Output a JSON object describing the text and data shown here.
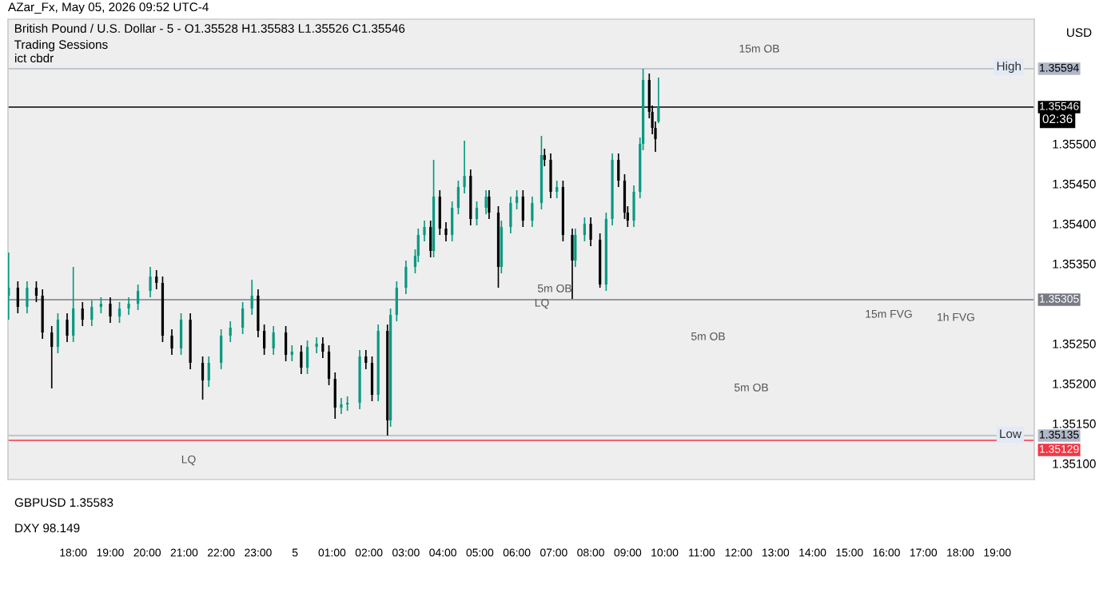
{
  "chart_data": {
    "type": "candlestick",
    "title": "British Pound / U.S. Dollar - 5 - O1.35528 H1.35583 L1.35526 C1.35546",
    "subtitle": "Trading Sessions",
    "colors": [
      "#089981",
      "#000000",
      "#089981",
      "#000000",
      "#000000",
      "#000000",
      "#089981",
      "#000000",
      "#089981",
      "#000000",
      "#089981",
      "#089981",
      "#000000",
      "#089981",
      "#089981",
      "#089981",
      "#089981",
      "#000000",
      "#000000",
      "#000000",
      "#089981",
      "#000000",
      "#000000",
      "#089981",
      "#089981",
      "#089981",
      "#089981",
      "#089981",
      "#000000",
      "#000000",
      "#089981",
      "#000000",
      "#089981",
      "#000000",
      "#089981",
      "#089981",
      "#000000",
      "#000000",
      "#000000",
      "#089981",
      "#089981",
      "#089981",
      "#000000",
      "#000000",
      "#089981",
      "#000000",
      "#089981",
      "#089981",
      "#089981",
      "#089981",
      "#089981",
      "#089981",
      "#000000",
      "#089981",
      "#000000",
      "#000000",
      "#089981",
      "#089981",
      "#089981",
      "#000000",
      "#089981",
      "#089981",
      "#000000",
      "#000000",
      "#089981",
      "#089981",
      "#089981",
      "#000000",
      "#089981",
      "#089981",
      "#000000",
      "#000000",
      "#089981",
      "#000000",
      "#000000",
      "#089981",
      "#089981",
      "#000000",
      "#000000",
      "#089981",
      "#089981",
      "#000000",
      "#000000",
      "#000000",
      "#089981",
      "#089981",
      "#089981",
      "#000000",
      "#000000",
      "#000000",
      "#089981"
    ],
    "x": [
      "2026-05-04T16:15",
      "2026-05-04T16:30",
      "2026-05-04T16:45",
      "2026-05-04T17:00",
      "2026-05-04T17:10",
      "2026-05-04T17:25",
      "2026-05-04T17:35",
      "2026-05-04T17:50",
      "2026-05-04T18:00",
      "2026-05-04T18:15",
      "2026-05-04T18:30",
      "2026-05-04T18:45",
      "2026-05-04T19:00",
      "2026-05-04T19:15",
      "2026-05-04T19:30",
      "2026-05-04T19:45",
      "2026-05-04T20:05",
      "2026-05-04T20:15",
      "2026-05-04T20:25",
      "2026-05-04T20:40",
      "2026-05-04T20:55",
      "2026-05-04T21:10",
      "2026-05-04T21:30",
      "2026-05-04T21:40",
      "2026-05-04T22:00",
      "2026-05-04T22:15",
      "2026-05-04T22:35",
      "2026-05-04T22:50",
      "2026-05-04T23:00",
      "2026-05-04T23:10",
      "2026-05-04T23:25",
      "2026-05-04T23:45",
      "2026-05-04T23:55",
      "2026-05-05T00:10",
      "2026-05-05T00:20",
      "2026-05-05T00:35",
      "2026-05-05T00:45",
      "2026-05-05T00:55",
      "2026-05-05T01:05",
      "2026-05-05T01:15",
      "2026-05-05T01:25",
      "2026-05-05T01:45",
      "2026-05-05T01:55",
      "2026-05-05T02:05",
      "2026-05-05T02:15",
      "2026-05-05T02:30",
      "2026-05-05T02:35",
      "2026-05-05T02:45",
      "2026-05-05T03:00",
      "2026-05-05T03:15",
      "2026-05-05T03:20",
      "2026-05-05T03:30",
      "2026-05-05T03:40",
      "2026-05-05T03:45",
      "2026-05-05T03:55",
      "2026-05-05T04:05",
      "2026-05-05T04:15",
      "2026-05-05T04:25",
      "2026-05-05T04:35",
      "2026-05-05T04:45",
      "2026-05-05T04:55",
      "2026-05-05T05:10",
      "2026-05-05T05:15",
      "2026-05-05T05:30",
      "2026-05-05T05:35",
      "2026-05-05T05:50",
      "2026-05-05T06:00",
      "2026-05-05T06:10",
      "2026-05-05T06:25",
      "2026-05-05T06:40",
      "2026-05-05T06:45",
      "2026-05-05T06:55",
      "2026-05-05T07:05",
      "2026-05-05T07:15",
      "2026-05-05T07:30",
      "2026-05-05T07:35",
      "2026-05-05T07:50",
      "2026-05-05T08:00",
      "2026-05-05T08:15",
      "2026-05-05T08:25",
      "2026-05-05T08:35",
      "2026-05-05T08:45",
      "2026-05-05T08:55",
      "2026-05-05T09:00",
      "2026-05-05T09:10",
      "2026-05-05T09:20",
      "2026-05-05T09:25",
      "2026-05-05T09:35",
      "2026-05-05T09:40",
      "2026-05-05T09:45",
      "2026-05-05T09:50"
    ],
    "ohlc": [
      [
        1.3531,
        1.35364,
        1.3528,
        1.3532
      ],
      [
        1.3532,
        1.35328,
        1.35288,
        1.35296
      ],
      [
        1.35296,
        1.35328,
        1.35288,
        1.3532
      ],
      [
        1.3532,
        1.35328,
        1.35302,
        1.3531
      ],
      [
        1.3531,
        1.35318,
        1.35256,
        1.35264
      ],
      [
        1.35264,
        1.35272,
        1.35194,
        1.35246
      ],
      [
        1.35246,
        1.35288,
        1.35238,
        1.3528
      ],
      [
        1.3528,
        1.35288,
        1.35252,
        1.3526
      ],
      [
        1.3526,
        1.35346,
        1.35252,
        1.35294
      ],
      [
        1.35294,
        1.35302,
        1.35272,
        1.3528
      ],
      [
        1.3528,
        1.35304,
        1.35272,
        1.35296
      ],
      [
        1.35296,
        1.35308,
        1.35288,
        1.353
      ],
      [
        1.353,
        1.35308,
        1.35276,
        1.35284
      ],
      [
        1.35284,
        1.35302,
        1.35276,
        1.35294
      ],
      [
        1.35294,
        1.35308,
        1.35286,
        1.353
      ],
      [
        1.353,
        1.35324,
        1.35292,
        1.35316
      ],
      [
        1.35316,
        1.35346,
        1.35308,
        1.35334
      ],
      [
        1.35334,
        1.35342,
        1.35318,
        1.35326
      ],
      [
        1.35326,
        1.35334,
        1.35252,
        1.3526
      ],
      [
        1.3526,
        1.35268,
        1.35236,
        1.35244
      ],
      [
        1.35244,
        1.35288,
        1.35236,
        1.3528
      ],
      [
        1.3528,
        1.35288,
        1.35218,
        1.35226
      ],
      [
        1.35226,
        1.35234,
        1.3518,
        1.35204
      ],
      [
        1.35204,
        1.35234,
        1.35196,
        1.35226
      ],
      [
        1.35226,
        1.35268,
        1.35218,
        1.3526
      ],
      [
        1.3526,
        1.35278,
        1.35252,
        1.3527
      ],
      [
        1.3527,
        1.35302,
        1.35262,
        1.35294
      ],
      [
        1.35294,
        1.3533,
        1.35286,
        1.3531
      ],
      [
        1.3531,
        1.35318,
        1.35258,
        1.35266
      ],
      [
        1.35266,
        1.35274,
        1.35236,
        1.35244
      ],
      [
        1.35244,
        1.35272,
        1.35236,
        1.35264
      ],
      [
        1.35264,
        1.35272,
        1.35228,
        1.35236
      ],
      [
        1.35236,
        1.35248,
        1.35228,
        1.3524
      ],
      [
        1.3524,
        1.35248,
        1.35212,
        1.3522
      ],
      [
        1.3522,
        1.35254,
        1.35212,
        1.35246
      ],
      [
        1.35246,
        1.35258,
        1.35238,
        1.3525
      ],
      [
        1.3525,
        1.35258,
        1.35232,
        1.3524
      ],
      [
        1.3524,
        1.35248,
        1.35198,
        1.35206
      ],
      [
        1.35206,
        1.35214,
        1.35156,
        1.3517
      ],
      [
        1.3517,
        1.35182,
        1.35162,
        1.35174
      ],
      [
        1.35174,
        1.35184,
        1.35166,
        1.35176
      ],
      [
        1.35176,
        1.35242,
        1.35168,
        1.35234
      ],
      [
        1.35234,
        1.35242,
        1.35218,
        1.35226
      ],
      [
        1.35226,
        1.35234,
        1.35178,
        1.35186
      ],
      [
        1.35186,
        1.35274,
        1.35178,
        1.35266
      ],
      [
        1.35266,
        1.35274,
        1.35135,
        1.35154
      ],
      [
        1.35154,
        1.35294,
        1.35146,
        1.35286
      ],
      [
        1.35286,
        1.35328,
        1.35278,
        1.3532
      ],
      [
        1.3532,
        1.35354,
        1.35312,
        1.35346
      ],
      [
        1.35346,
        1.35368,
        1.35338,
        1.3536
      ],
      [
        1.3536,
        1.35394,
        1.35352,
        1.35386
      ],
      [
        1.35386,
        1.35404,
        1.35378,
        1.35396
      ],
      [
        1.35396,
        1.35404,
        1.35358,
        1.35366
      ],
      [
        1.35366,
        1.3548,
        1.35358,
        1.35434
      ],
      [
        1.35434,
        1.35442,
        1.35386,
        1.35394
      ],
      [
        1.35394,
        1.35402,
        1.35378,
        1.35386
      ],
      [
        1.35386,
        1.35428,
        1.35378,
        1.3542
      ],
      [
        1.3542,
        1.35454,
        1.35412,
        1.35446
      ],
      [
        1.35446,
        1.35504,
        1.35438,
        1.3546
      ],
      [
        1.3546,
        1.35468,
        1.35398,
        1.35406
      ],
      [
        1.35406,
        1.35428,
        1.35398,
        1.3542
      ],
      [
        1.3542,
        1.35442,
        1.35412,
        1.35434
      ],
      [
        1.35434,
        1.35442,
        1.35406,
        1.35414
      ],
      [
        1.35414,
        1.35422,
        1.3532,
        1.35346
      ],
      [
        1.35346,
        1.35404,
        1.35338,
        1.35396
      ],
      [
        1.35396,
        1.35434,
        1.35388,
        1.35426
      ],
      [
        1.35426,
        1.35442,
        1.35418,
        1.35434
      ],
      [
        1.35434,
        1.35442,
        1.35396,
        1.35404
      ],
      [
        1.35404,
        1.35434,
        1.35396,
        1.35426
      ],
      [
        1.35426,
        1.3551,
        1.35418,
        1.35486
      ],
      [
        1.35486,
        1.35494,
        1.35472,
        1.3548
      ],
      [
        1.3548,
        1.35488,
        1.35432,
        1.3544
      ],
      [
        1.3544,
        1.35454,
        1.35432,
        1.35446
      ],
      [
        1.35446,
        1.35454,
        1.35378,
        1.35386
      ],
      [
        1.35386,
        1.35394,
        1.35306,
        1.35354
      ],
      [
        1.35354,
        1.35394,
        1.35346,
        1.35386
      ],
      [
        1.35386,
        1.35408,
        1.35378,
        1.354
      ],
      [
        1.354,
        1.35408,
        1.35372,
        1.3538
      ],
      [
        1.3538,
        1.35388,
        1.3532,
        1.35324
      ],
      [
        1.35324,
        1.35414,
        1.35316,
        1.35406
      ],
      [
        1.35406,
        1.35488,
        1.35398,
        1.3548
      ],
      [
        1.3548,
        1.35488,
        1.35446,
        1.35454
      ],
      [
        1.35454,
        1.35462,
        1.35406,
        1.35414
      ],
      [
        1.35414,
        1.35422,
        1.35396,
        1.35404
      ],
      [
        1.35404,
        1.35448,
        1.35396,
        1.3544
      ],
      [
        1.3544,
        1.35508,
        1.35432,
        1.355
      ],
      [
        1.355,
        1.35594,
        1.35492,
        1.3558
      ],
      [
        1.3558,
        1.35588,
        1.35532,
        1.3554
      ],
      [
        1.3554,
        1.35548,
        1.35512,
        1.3552
      ],
      [
        1.3552,
        1.35528,
        1.3549,
        1.35506
      ],
      [
        1.35528,
        1.35583,
        1.35526,
        1.35546
      ]
    ],
    "xlim": [
      "2026-05-04T16:14",
      "2026-05-05T20:00"
    ],
    "xticks": [
      {
        "value": "2026-05-04T18:00",
        "label": "18:00"
      },
      {
        "value": "2026-05-04T19:00",
        "label": "19:00"
      },
      {
        "value": "2026-05-04T20:00",
        "label": "20:00"
      },
      {
        "value": "2026-05-04T21:00",
        "label": "21:00"
      },
      {
        "value": "2026-05-04T22:00",
        "label": "22:00"
      },
      {
        "value": "2026-05-04T23:00",
        "label": "23:00"
      },
      {
        "value": "2026-05-05T00:00",
        "label": "5"
      },
      {
        "value": "2026-05-05T01:00",
        "label": "01:00"
      },
      {
        "value": "2026-05-05T02:00",
        "label": "02:00"
      },
      {
        "value": "2026-05-05T03:00",
        "label": "03:00"
      },
      {
        "value": "2026-05-05T04:00",
        "label": "04:00"
      },
      {
        "value": "2026-05-05T05:00",
        "label": "05:00"
      },
      {
        "value": "2026-05-05T06:00",
        "label": "06:00"
      },
      {
        "value": "2026-05-05T07:00",
        "label": "07:00"
      },
      {
        "value": "2026-05-05T08:00",
        "label": "08:00"
      },
      {
        "value": "2026-05-05T09:00",
        "label": "09:00"
      },
      {
        "value": "2026-05-05T10:00",
        "label": "10:00"
      },
      {
        "value": "2026-05-05T11:00",
        "label": "11:00"
      },
      {
        "value": "2026-05-05T12:00",
        "label": "12:00"
      },
      {
        "value": "2026-05-05T13:00",
        "label": "13:00"
      },
      {
        "value": "2026-05-05T14:00",
        "label": "14:00"
      },
      {
        "value": "2026-05-05T15:00",
        "label": "15:00"
      },
      {
        "value": "2026-05-05T16:00",
        "label": "16:00"
      },
      {
        "value": "2026-05-05T17:00",
        "label": "17:00"
      },
      {
        "value": "2026-05-05T18:00",
        "label": "18:00"
      },
      {
        "value": "2026-05-05T19:00",
        "label": "19:00"
      }
    ],
    "ylim": [
      1.3508,
      1.35656
    ],
    "yticks": [
      {
        "value": 1.351,
        "label": "1.35100"
      },
      {
        "value": 1.3515,
        "label": "1.35150"
      },
      {
        "value": 1.352,
        "label": "1.35200"
      },
      {
        "value": 1.3525,
        "label": "1.35250"
      },
      {
        "value": 1.3535,
        "label": "1.35350"
      },
      {
        "value": 1.354,
        "label": "1.35400"
      },
      {
        "value": 1.3545,
        "label": "1.35450"
      },
      {
        "value": 1.355,
        "label": "1.35500"
      }
    ],
    "ref_lines": [
      {
        "axis": "y",
        "value": 1.35594,
        "label": "1.35594",
        "color": "#b0b8c8"
      },
      {
        "axis": "y",
        "value": 1.35546,
        "label": "1.35546",
        "color": "#000000"
      },
      {
        "axis": "y",
        "value": 1.35305,
        "label": "1.35305",
        "color": "#787b86"
      },
      {
        "axis": "y",
        "value": 1.35135,
        "label": "1.35135",
        "color": "#b0b8c8"
      },
      {
        "axis": "y",
        "value": 1.35129,
        "label": "1.35129",
        "color": "#f23645"
      }
    ],
    "annotations": [
      "AZar_Fx, May 05, 2026 09:52 UTC-4",
      "ict cbdr",
      "USD",
      "GBPUSD 1.35583",
      "DXY 98.149",
      "High",
      "02:36",
      "Low",
      "15m OB",
      "5m OB",
      "LQ",
      "15m FVG",
      "1h FVG",
      "5m OB",
      "5m OB",
      "LQ"
    ],
    "grid": false,
    "legend": false
  }
}
